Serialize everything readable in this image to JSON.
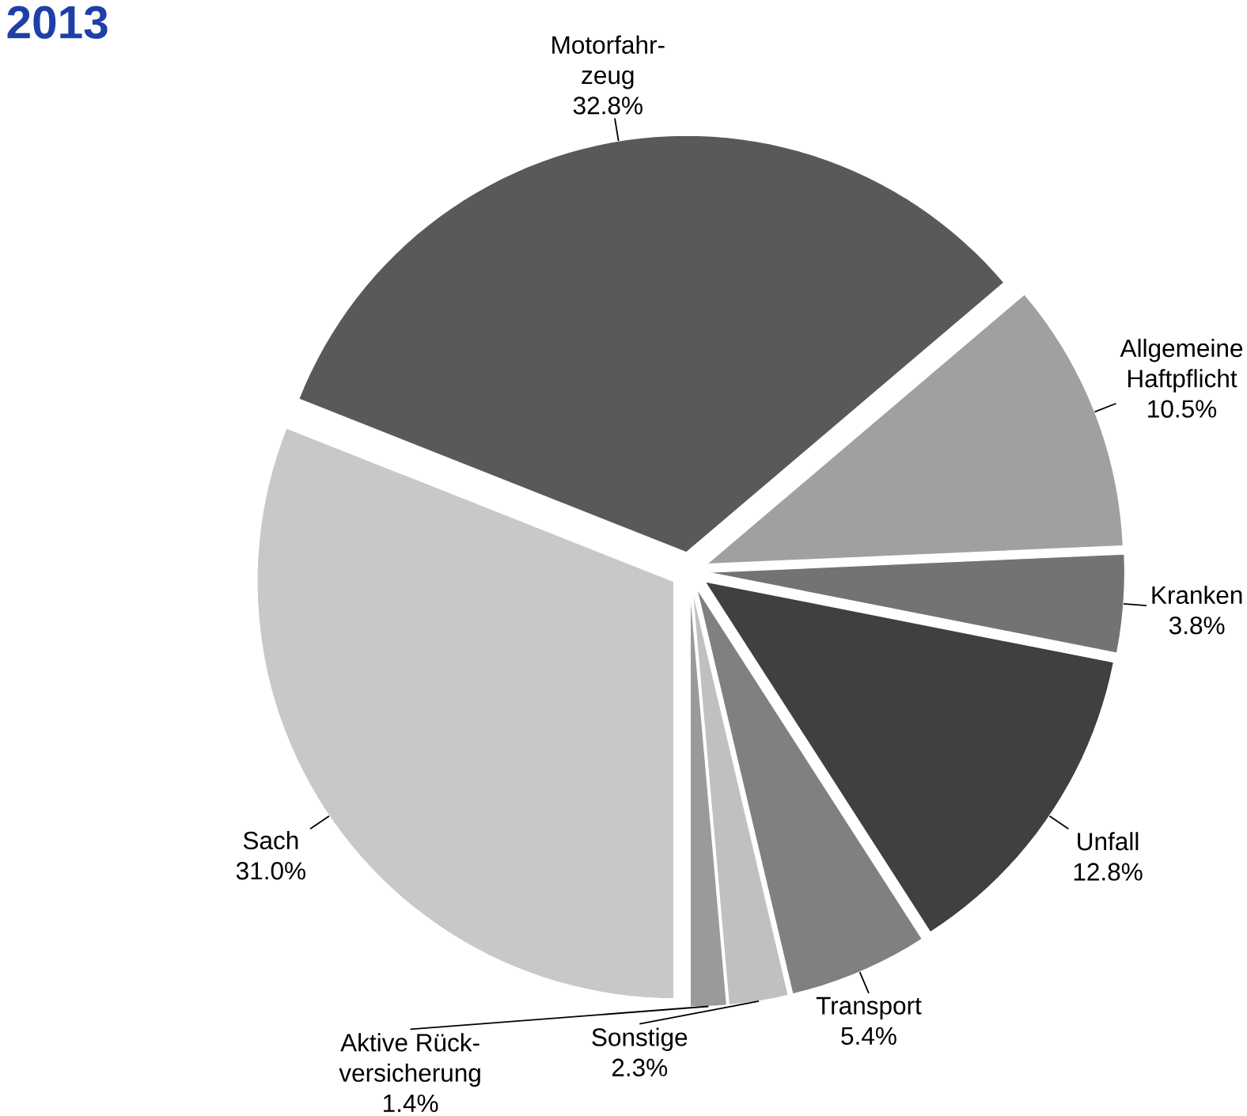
{
  "chart_data": {
    "type": "pie",
    "title": "2013",
    "categories": [
      "Sach",
      "Motorfahr-zeug",
      "Allgemeine Haftpflicht",
      "Kranken",
      "Unfall",
      "Transport",
      "Sonstige",
      "Aktive Rück-versicherung"
    ],
    "values": [
      31.0,
      32.8,
      10.5,
      3.8,
      12.8,
      5.4,
      2.3,
      1.4
    ],
    "value_labels": [
      "31.0%",
      "32.8%",
      "10.5%",
      "3.8%",
      "12.8%",
      "5.4%",
      "2.3%",
      "1.4%"
    ],
    "colors": [
      "#c8c8c8",
      "#595959",
      "#a0a0a0",
      "#737373",
      "#404040",
      "#808080",
      "#c0c0c0",
      "#9a9a9a"
    ]
  }
}
